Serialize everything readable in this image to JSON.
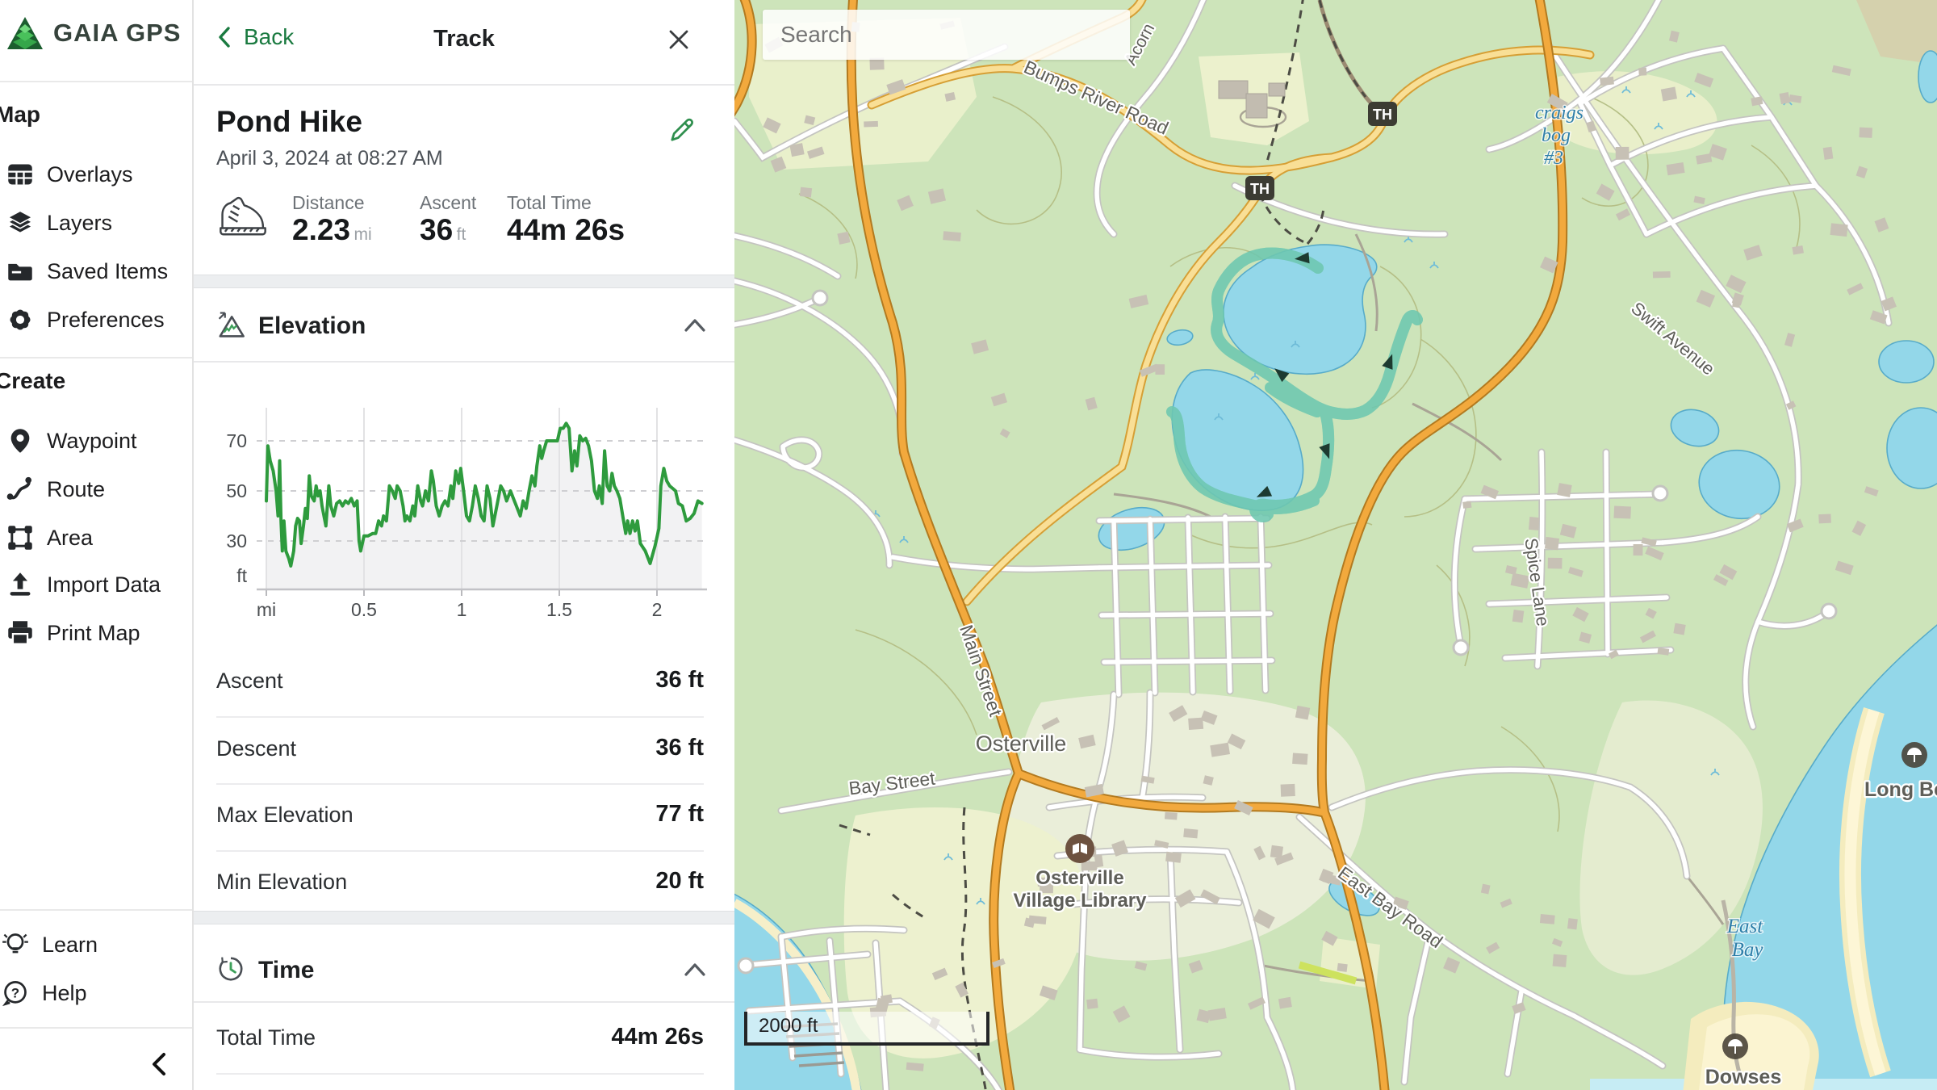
{
  "app": {
    "logo_text": "GAIA GPS"
  },
  "sidebar": {
    "groups": [
      {
        "heading": "Map",
        "items": [
          {
            "icon": "overlays-icon",
            "label": "Overlays"
          },
          {
            "icon": "layers-icon",
            "label": "Layers"
          },
          {
            "icon": "folder-icon",
            "label": "Saved Items"
          },
          {
            "icon": "gear-icon",
            "label": "Preferences"
          }
        ]
      },
      {
        "heading": "Create",
        "items": [
          {
            "icon": "waypoint-pin-icon",
            "label": "Waypoint"
          },
          {
            "icon": "route-icon",
            "label": "Route"
          },
          {
            "icon": "area-icon",
            "label": "Area"
          },
          {
            "icon": "import-icon",
            "label": "Import Data"
          },
          {
            "icon": "printer-icon",
            "label": "Print Map"
          }
        ]
      }
    ],
    "footer_items": [
      {
        "icon": "lightbulb-icon",
        "label": "Learn"
      },
      {
        "icon": "help-icon",
        "label": "Help"
      }
    ]
  },
  "panel": {
    "header": {
      "back_label": "Back",
      "title": "Track"
    },
    "track": {
      "name": "Pond Hike",
      "date": "April 3, 2024 at 08:27 AM"
    },
    "summary": [
      {
        "label": "Distance",
        "value": "2.23",
        "unit": "mi"
      },
      {
        "label": "Ascent",
        "value": "36",
        "unit": "ft"
      },
      {
        "label": "Total Time",
        "value": "44m 26s",
        "unit": ""
      }
    ],
    "elevation_section": {
      "title": "Elevation"
    },
    "stats": [
      {
        "label": "Ascent",
        "value": "36 ft"
      },
      {
        "label": "Descent",
        "value": "36 ft"
      },
      {
        "label": "Max Elevation",
        "value": "77 ft"
      },
      {
        "label": "Min Elevation",
        "value": "20 ft"
      }
    ],
    "time_section": {
      "title": "Time",
      "rows": [
        {
          "label": "Total Time",
          "value": "44m 26s"
        }
      ]
    }
  },
  "map": {
    "search_placeholder": "Search",
    "scale_label": "2000 ft",
    "labels": {
      "bumps_river_road": "Bumps River Road",
      "acorn": "Acorn",
      "craigs_bog": [
        "craigs",
        "bog",
        "#3"
      ],
      "swift_avenue": "Swift Avenue",
      "spice_lane": "Spice Lane",
      "main_street": "Main Street",
      "osterville": "Osterville",
      "bay_street": "Bay Street",
      "library": [
        "Osterville",
        "Village Library"
      ],
      "east_bay_road": "East Bay Road",
      "east_bay": [
        "East",
        "Bay"
      ],
      "dowses": "Dowses",
      "long_beach": "Long Be",
      "trailhead": "TH"
    },
    "colors": {
      "track": "#1ea17c",
      "water": "#93d7e9",
      "highway": "#f2a93d",
      "secondary_road": "#f9df96",
      "accent_green": "#1a7a40"
    }
  },
  "chart_data": {
    "type": "line",
    "title": "Elevation",
    "x_unit": "mi",
    "y_unit": "ft",
    "x_ticks": [
      "mi",
      "0.5",
      "1",
      "1.5",
      "2"
    ],
    "x_tick_values": [
      0,
      0.5,
      1,
      1.5,
      2
    ],
    "y_ticks": [
      70,
      50,
      30
    ],
    "xlim": [
      0,
      2.23
    ],
    "ylim": [
      10,
      85
    ],
    "line_color": "#2e9b3d",
    "series": [
      {
        "name": "elevation_ft_vs_mi",
        "points": [
          [
            0,
            46
          ],
          [
            0.008,
            68
          ],
          [
            0.02,
            62
          ],
          [
            0.035,
            58
          ],
          [
            0.05,
            50
          ],
          [
            0.06,
            40
          ],
          [
            0.068,
            62
          ],
          [
            0.075,
            38
          ],
          [
            0.082,
            26
          ],
          [
            0.09,
            38
          ],
          [
            0.1,
            26
          ],
          [
            0.115,
            23
          ],
          [
            0.125,
            20
          ],
          [
            0.14,
            26
          ],
          [
            0.15,
            36
          ],
          [
            0.16,
            39
          ],
          [
            0.17,
            38
          ],
          [
            0.178,
            29
          ],
          [
            0.19,
            36
          ],
          [
            0.2,
            43
          ],
          [
            0.21,
            39
          ],
          [
            0.22,
            56
          ],
          [
            0.23,
            48
          ],
          [
            0.245,
            46
          ],
          [
            0.255,
            52
          ],
          [
            0.265,
            48
          ],
          [
            0.275,
            50
          ],
          [
            0.285,
            44
          ],
          [
            0.295,
            40
          ],
          [
            0.305,
            36
          ],
          [
            0.32,
            52
          ],
          [
            0.33,
            44
          ],
          [
            0.345,
            40
          ],
          [
            0.36,
            45
          ],
          [
            0.375,
            46
          ],
          [
            0.39,
            44
          ],
          [
            0.405,
            46
          ],
          [
            0.42,
            45
          ],
          [
            0.435,
            47
          ],
          [
            0.45,
            44
          ],
          [
            0.465,
            46
          ],
          [
            0.475,
            30
          ],
          [
            0.483,
            26
          ],
          [
            0.5,
            32
          ],
          [
            0.52,
            32
          ],
          [
            0.545,
            33
          ],
          [
            0.56,
            33
          ],
          [
            0.575,
            38
          ],
          [
            0.59,
            36
          ],
          [
            0.6,
            40
          ],
          [
            0.615,
            38
          ],
          [
            0.63,
            52
          ],
          [
            0.645,
            50
          ],
          [
            0.66,
            47
          ],
          [
            0.67,
            52
          ],
          [
            0.685,
            50
          ],
          [
            0.7,
            44
          ],
          [
            0.71,
            38
          ],
          [
            0.72,
            40
          ],
          [
            0.735,
            38
          ],
          [
            0.75,
            44
          ],
          [
            0.76,
            40
          ],
          [
            0.775,
            52
          ],
          [
            0.79,
            46
          ],
          [
            0.8,
            44
          ],
          [
            0.815,
            50
          ],
          [
            0.83,
            46
          ],
          [
            0.845,
            58
          ],
          [
            0.855,
            54
          ],
          [
            0.87,
            44
          ],
          [
            0.885,
            40
          ],
          [
            0.9,
            44
          ],
          [
            0.915,
            46
          ],
          [
            0.93,
            44
          ],
          [
            0.945,
            52
          ],
          [
            0.955,
            47
          ],
          [
            0.97,
            58
          ],
          [
            0.985,
            53
          ],
          [
            0.995,
            59
          ],
          [
            1.01,
            50
          ],
          [
            1.025,
            40
          ],
          [
            1.04,
            38
          ],
          [
            1.055,
            44
          ],
          [
            1.07,
            52
          ],
          [
            1.085,
            47
          ],
          [
            1.1,
            40
          ],
          [
            1.115,
            38
          ],
          [
            1.13,
            52
          ],
          [
            1.145,
            47
          ],
          [
            1.16,
            36
          ],
          [
            1.18,
            44
          ],
          [
            1.2,
            52
          ],
          [
            1.215,
            50
          ],
          [
            1.23,
            46
          ],
          [
            1.25,
            50
          ],
          [
            1.265,
            47
          ],
          [
            1.28,
            44
          ],
          [
            1.3,
            40
          ],
          [
            1.315,
            46
          ],
          [
            1.33,
            43
          ],
          [
            1.345,
            50
          ],
          [
            1.36,
            56
          ],
          [
            1.375,
            52
          ],
          [
            1.385,
            60
          ],
          [
            1.4,
            68
          ],
          [
            1.41,
            63
          ],
          [
            1.42,
            66
          ],
          [
            1.435,
            70
          ],
          [
            1.46,
            70
          ],
          [
            1.49,
            70
          ],
          [
            1.505,
            75
          ],
          [
            1.52,
            75
          ],
          [
            1.535,
            77
          ],
          [
            1.55,
            75
          ],
          [
            1.565,
            58
          ],
          [
            1.578,
            66
          ],
          [
            1.59,
            60
          ],
          [
            1.605,
            72
          ],
          [
            1.62,
            70
          ],
          [
            1.635,
            71
          ],
          [
            1.65,
            68
          ],
          [
            1.665,
            62
          ],
          [
            1.68,
            50
          ],
          [
            1.695,
            47
          ],
          [
            1.705,
            52
          ],
          [
            1.72,
            45
          ],
          [
            1.732,
            66
          ],
          [
            1.745,
            52
          ],
          [
            1.758,
            50
          ],
          [
            1.77,
            57
          ],
          [
            1.782,
            52
          ],
          [
            1.795,
            50
          ],
          [
            1.81,
            47
          ],
          [
            1.825,
            40
          ],
          [
            1.84,
            33
          ],
          [
            1.85,
            38
          ],
          [
            1.862,
            33
          ],
          [
            1.875,
            38
          ],
          [
            1.888,
            34
          ],
          [
            1.9,
            38
          ],
          [
            1.915,
            29
          ],
          [
            1.94,
            26
          ],
          [
            1.965,
            21
          ],
          [
            1.99,
            28
          ],
          [
            2.01,
            35
          ],
          [
            2.02,
            52
          ],
          [
            2.035,
            59
          ],
          [
            2.05,
            54
          ],
          [
            2.065,
            52
          ],
          [
            2.08,
            51
          ],
          [
            2.095,
            50
          ],
          [
            2.11,
            45
          ],
          [
            2.13,
            44
          ],
          [
            2.15,
            38
          ],
          [
            2.17,
            39
          ],
          [
            2.19,
            41
          ],
          [
            2.21,
            46
          ],
          [
            2.23,
            45
          ]
        ]
      }
    ]
  }
}
